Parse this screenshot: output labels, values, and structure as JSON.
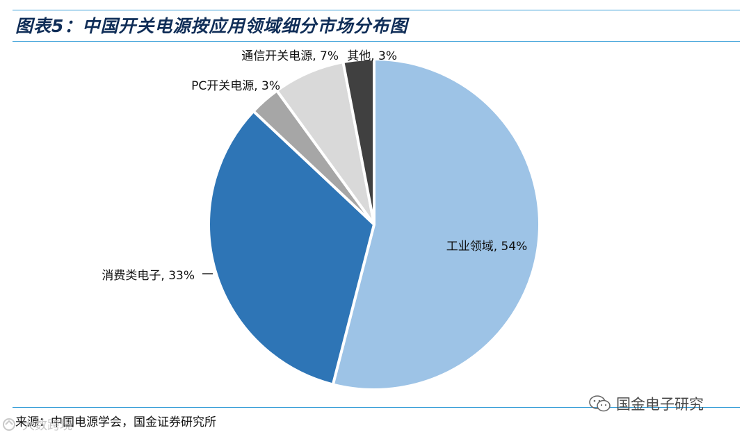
{
  "title": "图表5：中国开关电源按应用领域细分市场分布图",
  "source": "来源：中国电源学会，国金证券研究所",
  "watermark_right": "国金电子研究",
  "watermark_left": "大数跨境",
  "chart_data": {
    "type": "pie",
    "slices": [
      {
        "label": "工业领域",
        "value": 54,
        "display": "工业领域, 54%",
        "color": "#9dc3e6"
      },
      {
        "label": "消费类电子",
        "value": 33,
        "display": "消费类电子, 33%",
        "color": "#2e75b6"
      },
      {
        "label": "PC开关电源",
        "value": 3,
        "display": "PC开关电源, 3%",
        "color": "#a6a6a6"
      },
      {
        "label": "通信开关电源",
        "value": 7,
        "display": "通信开关电源, 7%",
        "color": "#d9d9d9"
      },
      {
        "label": "其他",
        "value": 3,
        "display": "其他, 3%",
        "color": "#404040"
      }
    ]
  }
}
